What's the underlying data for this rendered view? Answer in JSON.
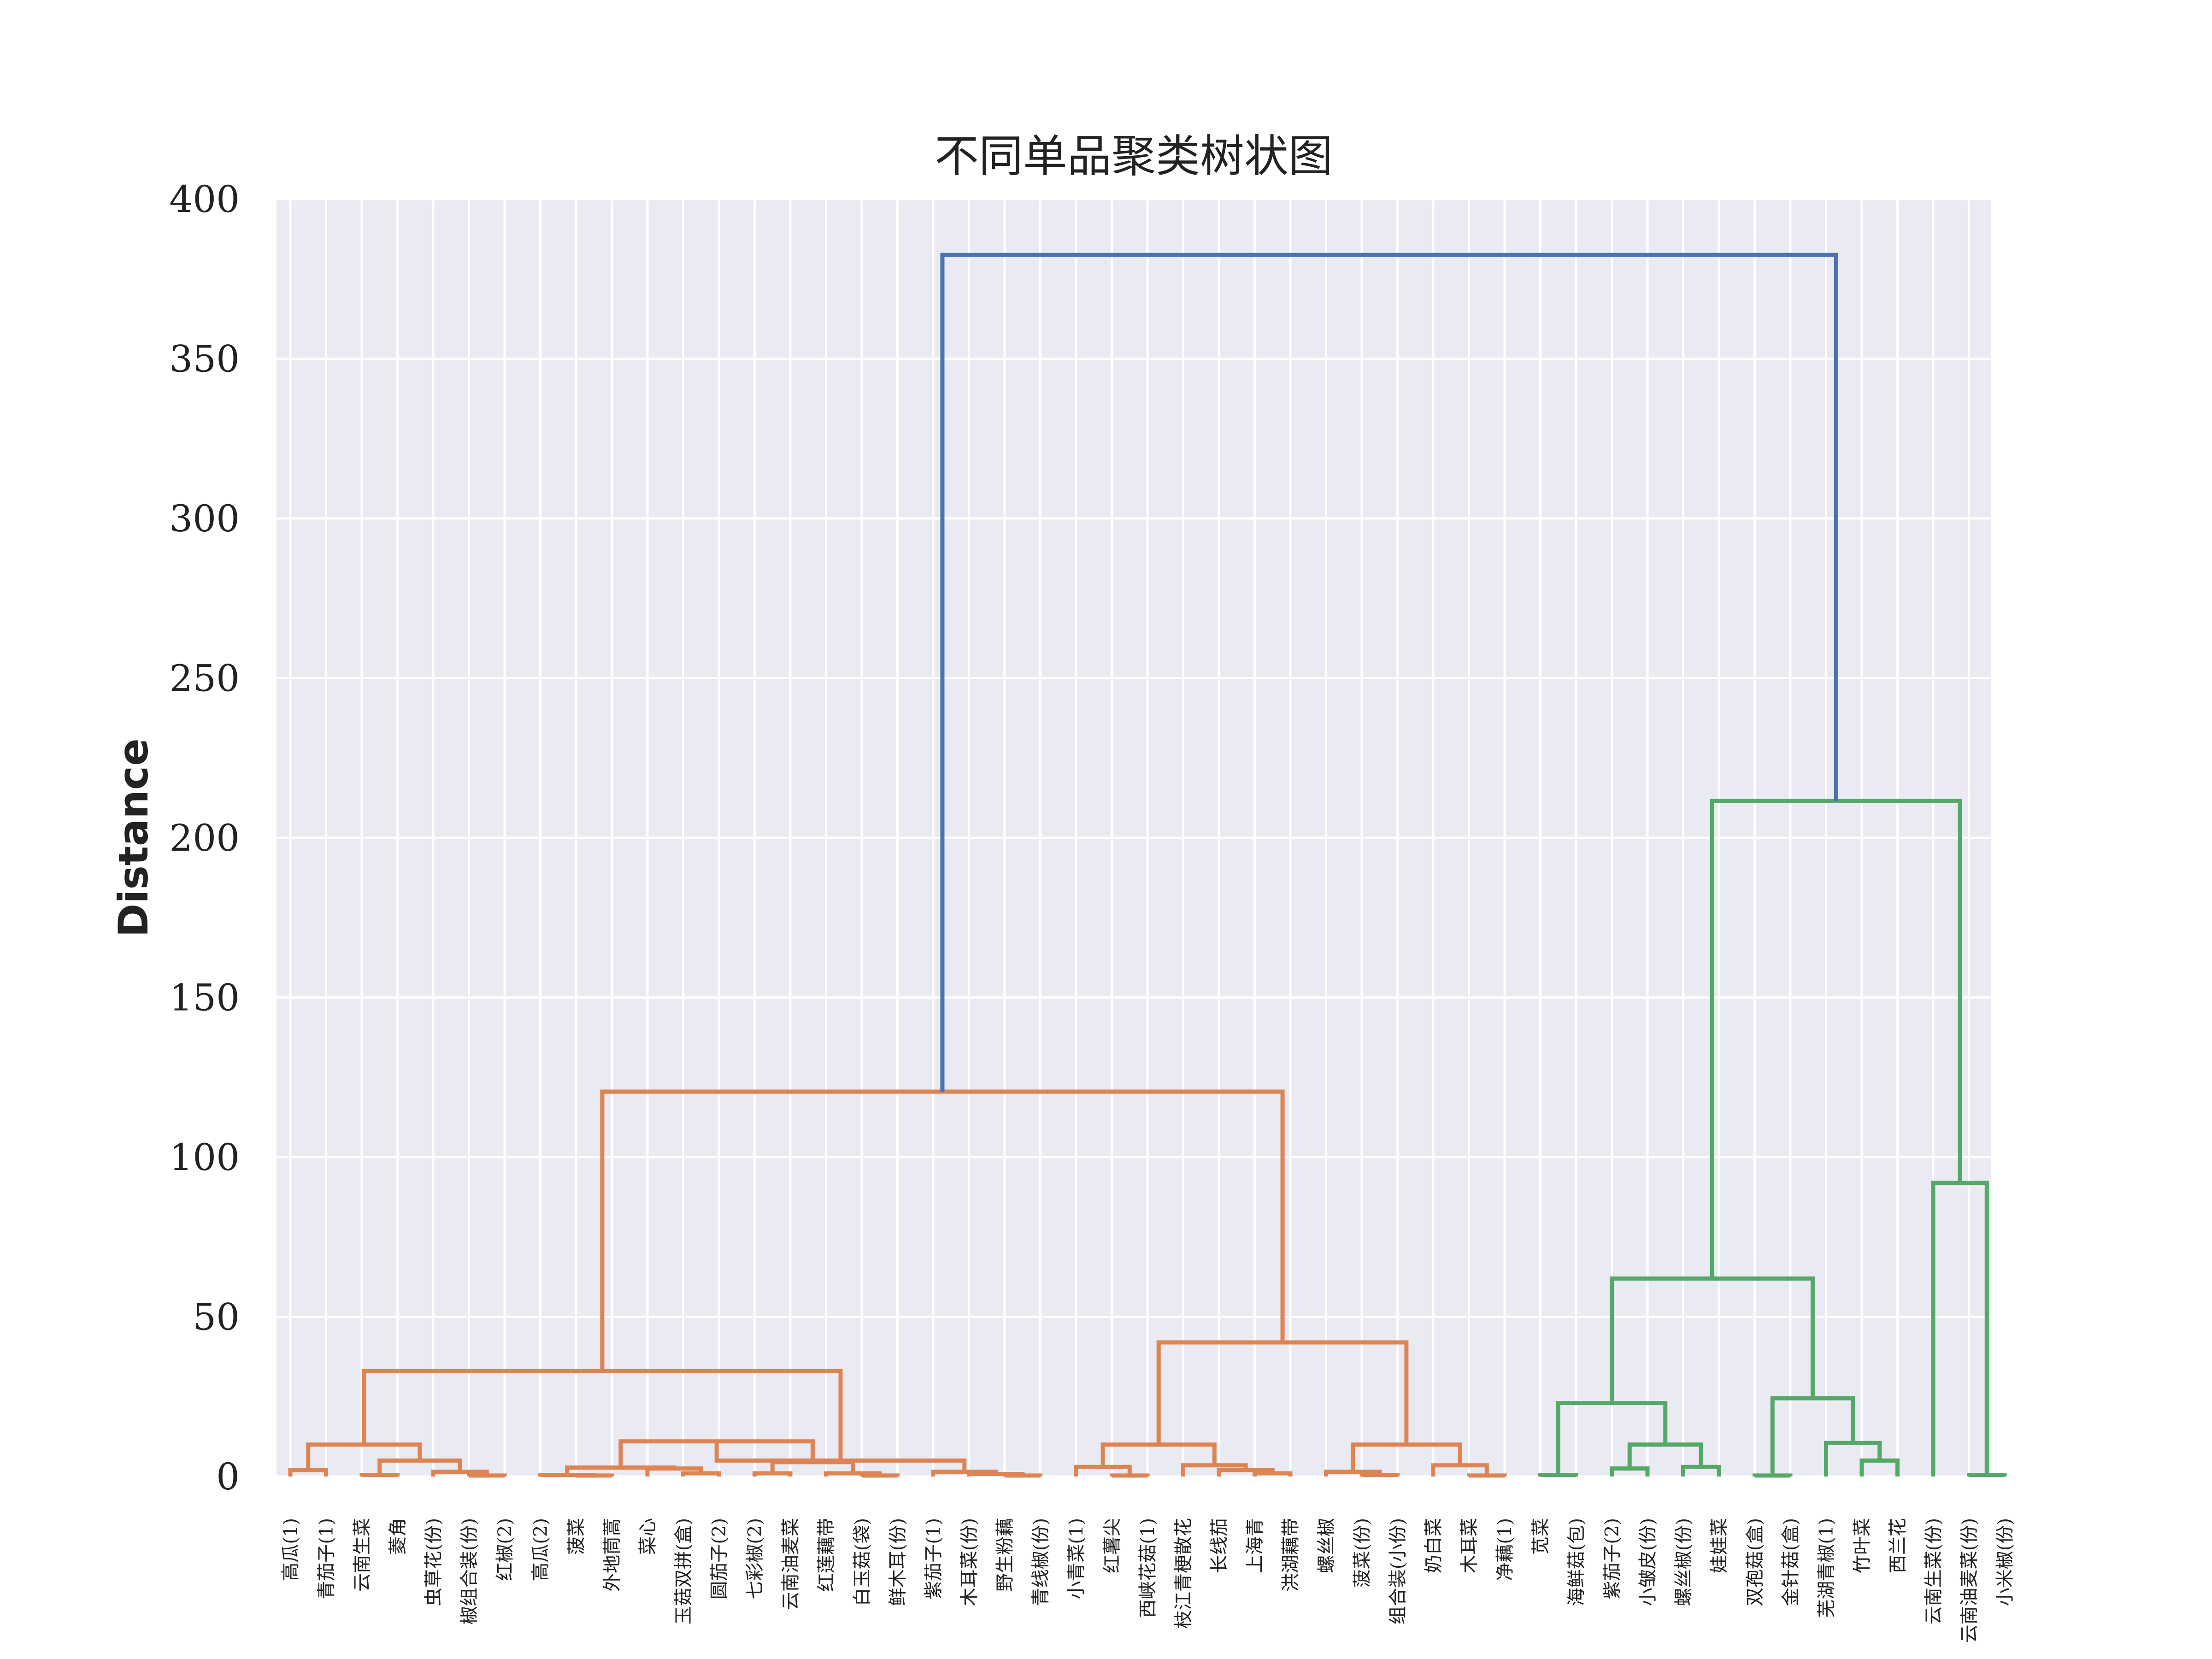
{
  "chart_data": {
    "type": "dendrogram",
    "title": "不同单品聚类树状图",
    "ylabel": "Distance",
    "xlabel": "",
    "ylim": [
      0,
      400
    ],
    "yticks": [
      0,
      50,
      100,
      150,
      200,
      250,
      300,
      350,
      400
    ],
    "grid": true,
    "colors": {
      "background": "#eaeaf2",
      "grid": "#ffffff",
      "cluster_orange": "#dd8452",
      "cluster_green": "#55a868",
      "root": "#4c72b0"
    },
    "leaves": [
      "高瓜(1)",
      "青茄子(1)",
      "云南生菜",
      "菱角",
      "虫草花(份)",
      "椒组合装(份)",
      "红椒(2)",
      "高瓜(2)",
      "菠菜",
      "外地茼蒿",
      "菜心",
      "玉菇双拼(盒)",
      "圆茄子(2)",
      "七彩椒(2)",
      "云南油麦菜",
      "红莲藕带",
      "白玉菇(袋)",
      "鲜木耳(份)",
      "紫茄子(1)",
      "木耳菜(份)",
      "野生粉藕",
      "青线椒(份)",
      "小青菜(1)",
      "红薯尖",
      "西峡花菇(1)",
      "枝江青梗散花",
      "长线茄",
      "上海青",
      "洪湖藕带",
      "螺丝椒",
      "菠菜(份)",
      "组合装(小份)",
      "奶白菜",
      "木耳菜",
      "净藕(1)",
      "苋菜",
      "海鲜菇(包)",
      "紫茄子(2)",
      "小皱皮(份)",
      "螺丝椒(份)",
      "娃娃菜",
      "双孢菇(盒)",
      "金针菇(盒)",
      "芜湖青椒(1)",
      "竹叶菜",
      "西兰花",
      "云南生菜(份)",
      "云南油麦菜(份)",
      "小米椒(份)"
    ],
    "linkage": [
      {
        "left": "L0",
        "right": "L1",
        "height": 2.0,
        "color": "orange"
      },
      {
        "left": "L2",
        "right": "L3",
        "height": 0.5,
        "color": "orange"
      },
      {
        "left": "L5",
        "right": "L6",
        "height": 0.3,
        "color": "orange"
      },
      {
        "left": "L4",
        "right": "N2",
        "height": 1.5,
        "color": "orange"
      },
      {
        "left": "N1",
        "right": "N3",
        "height": 5.0,
        "color": "orange"
      },
      {
        "left": "N0",
        "right": "N4",
        "height": 10.0,
        "color": "orange"
      },
      {
        "left": "L8",
        "right": "L9",
        "height": 0.3,
        "color": "orange"
      },
      {
        "left": "L7",
        "right": "N6",
        "height": 0.5,
        "color": "orange"
      },
      {
        "left": "L11",
        "right": "L12",
        "height": 1.0,
        "color": "orange"
      },
      {
        "left": "L10",
        "right": "N8",
        "height": 2.5,
        "color": "orange"
      },
      {
        "left": "N7",
        "right": "N9",
        "height": 2.8,
        "color": "orange"
      },
      {
        "left": "L13",
        "right": "L14",
        "height": 1.0,
        "color": "orange"
      },
      {
        "left": "L16",
        "right": "L17",
        "height": 0.3,
        "color": "orange"
      },
      {
        "left": "L15",
        "right": "N12",
        "height": 1.0,
        "color": "orange"
      },
      {
        "left": "N11",
        "right": "N13",
        "height": 4.5,
        "color": "orange"
      },
      {
        "left": "N10",
        "right": "N14",
        "height": 11.0,
        "color": "orange"
      },
      {
        "left": "L20",
        "right": "L21",
        "height": 0.3,
        "color": "orange"
      },
      {
        "left": "L19",
        "right": "N16",
        "height": 0.8,
        "color": "orange"
      },
      {
        "left": "L18",
        "right": "N17",
        "height": 1.5,
        "color": "orange"
      },
      {
        "left": "N15",
        "right": "N18",
        "height": 5.0,
        "color": "orange"
      },
      {
        "left": "N5",
        "right": "N19",
        "height": 33.0,
        "color": "orange"
      },
      {
        "left": "L23",
        "right": "L24",
        "height": 0.3,
        "color": "orange"
      },
      {
        "left": "L22",
        "right": "N21",
        "height": 3.0,
        "color": "orange"
      },
      {
        "left": "L27",
        "right": "L28",
        "height": 1.0,
        "color": "orange"
      },
      {
        "left": "L26",
        "right": "N23",
        "height": 2.0,
        "color": "orange"
      },
      {
        "left": "L25",
        "right": "N24",
        "height": 3.5,
        "color": "orange"
      },
      {
        "left": "N22",
        "right": "N25",
        "height": 10.0,
        "color": "orange"
      },
      {
        "left": "L30",
        "right": "L31",
        "height": 0.5,
        "color": "orange"
      },
      {
        "left": "L29",
        "right": "N27",
        "height": 1.5,
        "color": "orange"
      },
      {
        "left": "L33",
        "right": "L34",
        "height": 0.3,
        "color": "orange"
      },
      {
        "left": "L32",
        "right": "N29",
        "height": 3.5,
        "color": "orange"
      },
      {
        "left": "N28",
        "right": "N30",
        "height": 10.0,
        "color": "orange"
      },
      {
        "left": "N26",
        "right": "N31",
        "height": 42.0,
        "color": "orange"
      },
      {
        "left": "N20",
        "right": "N32",
        "height": 120.5,
        "color": "orange"
      },
      {
        "left": "L35",
        "right": "L36",
        "height": 0.5,
        "color": "green"
      },
      {
        "left": "L37",
        "right": "L38",
        "height": 2.5,
        "color": "green"
      },
      {
        "left": "L39",
        "right": "L40",
        "height": 3.0,
        "color": "green"
      },
      {
        "left": "N35",
        "right": "N36",
        "height": 10.0,
        "color": "green"
      },
      {
        "left": "N34",
        "right": "N37",
        "height": 23.0,
        "color": "green"
      },
      {
        "left": "L41",
        "right": "L42",
        "height": 0.3,
        "color": "green"
      },
      {
        "left": "L44",
        "right": "L45",
        "height": 5.0,
        "color": "green"
      },
      {
        "left": "L43",
        "right": "N40",
        "height": 10.5,
        "color": "green"
      },
      {
        "left": "N39",
        "right": "N41",
        "height": 24.5,
        "color": "green"
      },
      {
        "left": "N38",
        "right": "N42",
        "height": 62.0,
        "color": "green"
      },
      {
        "left": "L47",
        "right": "L48",
        "height": 0.5,
        "color": "green"
      },
      {
        "left": "L46",
        "right": "N44",
        "height": 92.0,
        "color": "green"
      },
      {
        "left": "N43",
        "right": "N45",
        "height": 211.5,
        "color": "green"
      },
      {
        "left": "N33",
        "right": "N46",
        "height": 382.5,
        "color": "root"
      }
    ]
  }
}
